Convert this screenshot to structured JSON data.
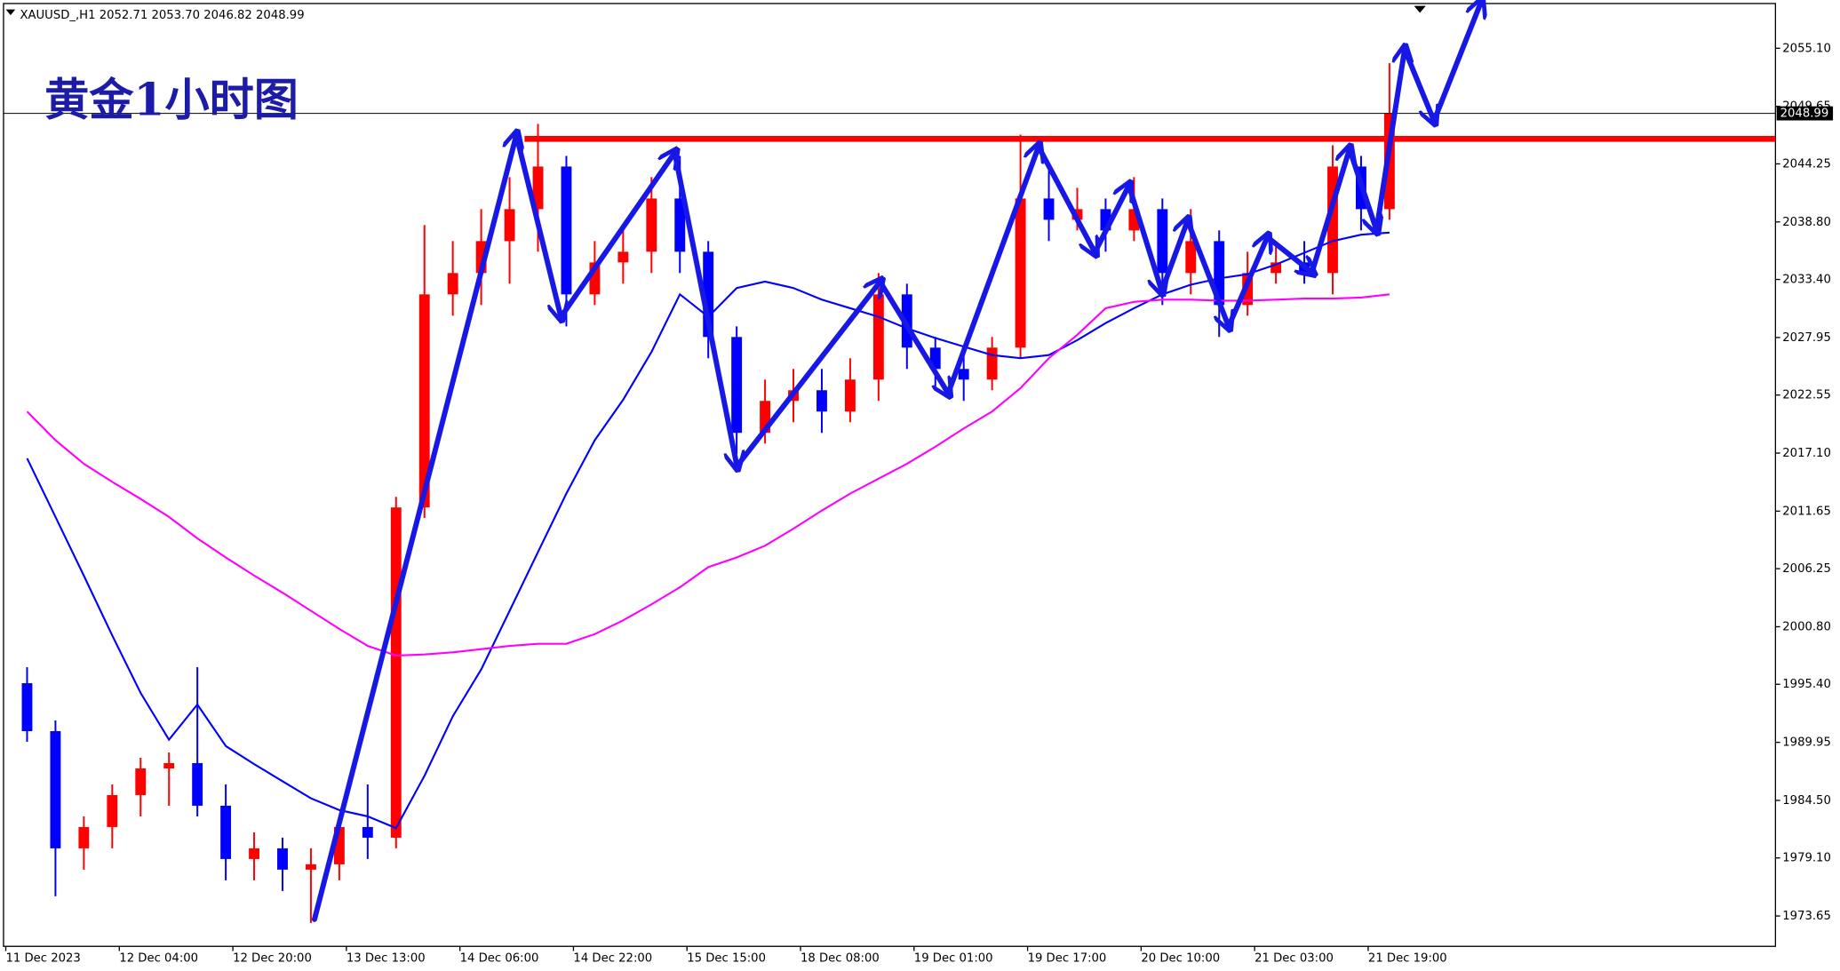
{
  "chart_data": {
    "type": "candlestick",
    "header": "XAUUSD_,H1  2052.71 2053.70 2046.82 2048.99",
    "title": "黄金1小时图",
    "up_color": "#ff0000",
    "down_color": "#0000ff",
    "candles": [
      [
        1995.5,
        1997,
        1990,
        1991
      ],
      [
        1991,
        1992,
        1975.5,
        1980
      ],
      [
        1980,
        1983,
        1978,
        1982
      ],
      [
        1982,
        1986,
        1980,
        1985
      ],
      [
        1985,
        1988.5,
        1983,
        1987.5
      ],
      [
        1987.5,
        1989,
        1984,
        1988
      ],
      [
        1988,
        1997,
        1983,
        1984
      ],
      [
        1984,
        1986,
        1977,
        1979
      ],
      [
        1979,
        1981.5,
        1977,
        1980
      ],
      [
        1980,
        1981,
        1976,
        1978
      ],
      [
        1978,
        1980,
        1973,
        1978.5
      ],
      [
        1978.5,
        1983,
        1977,
        1982
      ],
      [
        1982,
        1986,
        1979,
        1981
      ],
      [
        1981,
        2013,
        1980,
        2012
      ],
      [
        2012,
        2038.5,
        2011,
        2032
      ],
      [
        2032,
        2037,
        2030,
        2034
      ],
      [
        2034,
        2040,
        2031,
        2037
      ],
      [
        2037,
        2043,
        2033,
        2040
      ],
      [
        2040,
        2048,
        2036,
        2044
      ],
      [
        2044,
        2045,
        2029,
        2032
      ],
      [
        2032,
        2037,
        2031,
        2035
      ],
      [
        2035,
        2038,
        2033,
        2036
      ],
      [
        2036,
        2043,
        2034,
        2041
      ],
      [
        2041,
        2045,
        2034,
        2036
      ],
      [
        2036,
        2037,
        2026,
        2028
      ],
      [
        2028,
        2029,
        2017,
        2019
      ],
      [
        2019,
        2024,
        2018,
        2022
      ],
      [
        2022,
        2025,
        2020,
        2023
      ],
      [
        2023,
        2025,
        2019,
        2021
      ],
      [
        2021,
        2026,
        2020,
        2024
      ],
      [
        2024,
        2034,
        2022,
        2032
      ],
      [
        2032,
        2033,
        2025,
        2027
      ],
      [
        2027,
        2028,
        2023,
        2025
      ],
      [
        2025,
        2027,
        2022,
        2024
      ],
      [
        2024,
        2028,
        2023,
        2027
      ],
      [
        2027,
        2047,
        2026,
        2041
      ],
      [
        2041,
        2044,
        2037,
        2039
      ],
      [
        2039,
        2042,
        2038,
        2040
      ],
      [
        2040,
        2041,
        2036,
        2038
      ],
      [
        2038,
        2043,
        2037,
        2040
      ],
      [
        2040,
        2041,
        2031,
        2034
      ],
      [
        2034,
        2040,
        2032,
        2037
      ],
      [
        2037,
        2038,
        2028,
        2031
      ],
      [
        2031,
        2036,
        2030,
        2034
      ],
      [
        2034,
        2037,
        2033,
        2035
      ],
      [
        2035,
        2037,
        2033,
        2034
      ],
      [
        2034,
        2046,
        2032,
        2044
      ],
      [
        2044,
        2045,
        2038,
        2040
      ],
      [
        2040,
        2053.7,
        2039,
        2049
      ]
    ],
    "series": [
      {
        "color": "#0000ff",
        "values": [
          2016.6,
          2011.1,
          2005.6,
          2000,
          1994.6,
          1990.2,
          1993.5,
          1989.6,
          1987.9,
          1986.3,
          1984.7,
          1983.6,
          1983,
          1981.9,
          1986.8,
          1992.4,
          1996.8,
          2002.3,
          2007.8,
          2013.3,
          2018.3,
          2022.1,
          2026.6,
          2032,
          2029.9,
          2032.6,
          2033.2,
          2032.6,
          2031.5,
          2030.7,
          2029.9,
          2028.8,
          2027.9,
          2027.1,
          2026.3,
          2026,
          2026.3,
          2027.7,
          2029.3,
          2030.7,
          2032,
          2032.9,
          2033.5,
          2033.9,
          2034.8,
          2035.9,
          2037,
          2037.6,
          2037.8
        ]
      },
      {
        "color": "#ff00ff",
        "values": [
          2021,
          2018.3,
          2016.1,
          2014.4,
          2012.8,
          2011.1,
          2009.1,
          2007.3,
          2005.6,
          2004,
          2002.3,
          2000.6,
          1999,
          1998.1,
          1998.2,
          1998.4,
          1998.7,
          1999,
          1999.2,
          1999.2,
          2000.1,
          2001.4,
          2002.9,
          2004.5,
          2006.4,
          2007.3,
          2008.4,
          2010,
          2011.7,
          2013.3,
          2014.7,
          2016.1,
          2017.7,
          2019.4,
          2021,
          2023.2,
          2026,
          2028.2,
          2030.7,
          2031.3,
          2031.5,
          2031.5,
          2031.4,
          2031.4,
          2031.5,
          2031.6,
          2031.6,
          2031.7,
          2032
        ]
      }
    ],
    "level": {
      "value": 2046.6,
      "color": "#ff0000"
    },
    "last_price": 2048.99,
    "ylim": [
      1970.8,
      2059.3
    ],
    "yticks": [
      {
        "value": 2055.1,
        "label": "2055.10"
      },
      2049.65,
      2044.25,
      {
        "value": 2038.8,
        "label": "2038.80"
      },
      {
        "value": 2033.4,
        "label": "2033.40"
      },
      2027.95,
      2022.55,
      {
        "value": 2017.1,
        "label": "2017.10"
      },
      2011.65,
      2006.25,
      {
        "value": 2000.8,
        "label": "2000.80"
      },
      {
        "value": 1995.4,
        "label": "1995.40"
      },
      1989.95,
      {
        "value": 1984.5,
        "label": "1984.50"
      },
      {
        "value": 1979.1,
        "label": "1979.10"
      },
      1973.65
    ],
    "xlim": [
      -0.83,
      61.6
    ],
    "xticks": [
      {
        "value": -0.75,
        "label": "11 Dec 2023"
      },
      {
        "value": 3.25,
        "label": "12 Dec 04:00"
      },
      {
        "value": 7.25,
        "label": "12 Dec 20:00"
      },
      {
        "value": 11.25,
        "label": "13 Dec 13:00"
      },
      {
        "value": 15.25,
        "label": "14 Dec 06:00"
      },
      {
        "value": 19.25,
        "label": "14 Dec 22:00"
      },
      {
        "value": 23.25,
        "label": "15 Dec 15:00"
      },
      {
        "value": 27.25,
        "label": "18 Dec 08:00"
      },
      {
        "value": 31.25,
        "label": "19 Dec 01:00"
      },
      {
        "value": 35.25,
        "label": "19 Dec 17:00"
      },
      {
        "value": 39.25,
        "label": "20 Dec 10:00"
      },
      {
        "value": 43.25,
        "label": "21 Dec 03:00"
      },
      {
        "value": 47.25,
        "label": "21 Dec 19:00"
      }
    ]
  }
}
